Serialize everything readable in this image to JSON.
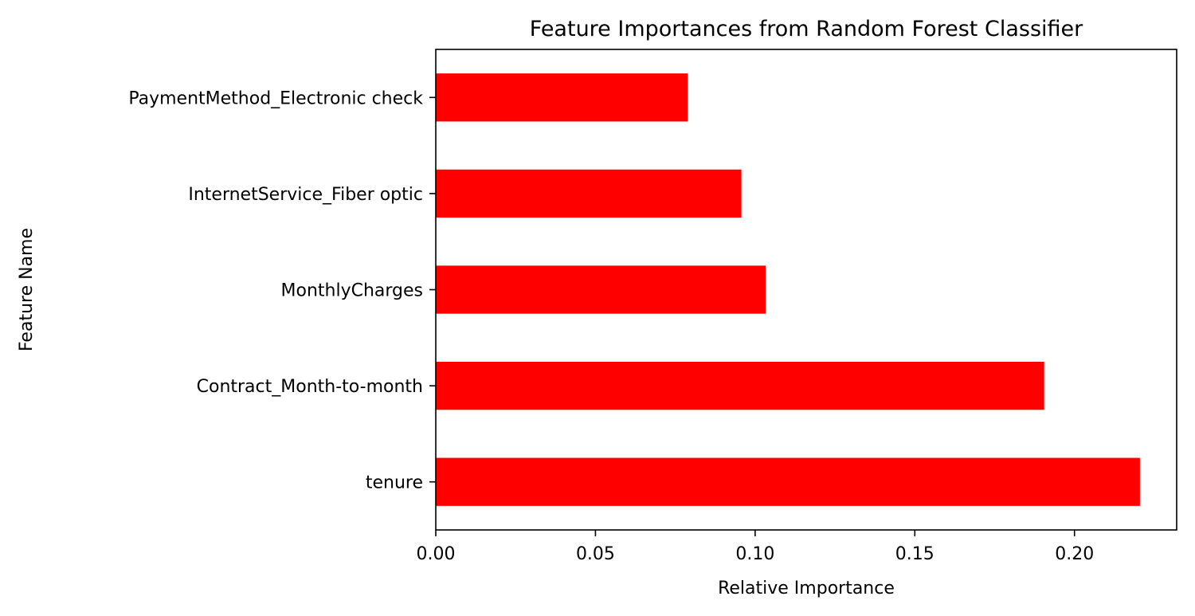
{
  "chart_data": {
    "type": "bar",
    "orientation": "horizontal",
    "title": "Feature Importances from Random Forest Classifier",
    "xlabel": "Relative Importance",
    "ylabel": "Feature Name",
    "categories": [
      "tenure",
      "Contract_Month-to-month",
      "MonthlyCharges",
      "InternetService_Fiber optic",
      "PaymentMethod_Electronic check"
    ],
    "values": [
      0.2205,
      0.1905,
      0.1033,
      0.0957,
      0.0789
    ],
    "xlim": [
      0,
      0.232
    ],
    "xticks": [
      0.0,
      0.05,
      0.1,
      0.15,
      0.2
    ],
    "xtick_labels": [
      "0.00",
      "0.05",
      "0.10",
      "0.15",
      "0.20"
    ],
    "bar_color": "#ff0000",
    "grid": false,
    "legend": false
  }
}
